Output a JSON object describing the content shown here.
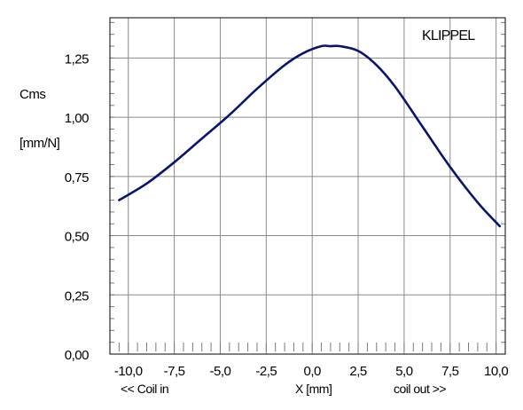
{
  "chart_data": {
    "type": "line",
    "title": "",
    "brand": "KLIPPEL",
    "brand_color": "#1a1ad0",
    "ylabel_lines": [
      "Cms",
      "[mm/N]"
    ],
    "xlabel": "X [mm]",
    "x_left_note": "<< Coil in",
    "x_right_note": "coil out >>",
    "xlim": [
      -11.0,
      10.5
    ],
    "ylim": [
      0.0,
      1.42
    ],
    "x_ticks": [
      -10.0,
      -7.5,
      -5.0,
      -2.5,
      0.0,
      2.5,
      5.0,
      7.5,
      10.0
    ],
    "x_tick_labels": [
      "-10,0",
      "-7,5",
      "-5,0",
      "-2,5",
      "0,0",
      "2,5",
      "5,0",
      "7,5",
      "10,0"
    ],
    "y_ticks": [
      0.0,
      0.25,
      0.5,
      0.75,
      1.0,
      1.25
    ],
    "y_tick_labels": [
      "0,00",
      "0,25",
      "0,50",
      "0,75",
      "1,00",
      "1,25"
    ],
    "grid": true,
    "series": [
      {
        "color": "#0a1470",
        "x": [
          -10.5,
          -9.0,
          -7.5,
          -6.0,
          -4.5,
          -3.0,
          -1.5,
          -0.5,
          0.5,
          1.0,
          1.5,
          2.5,
          3.5,
          4.5,
          6.0,
          7.5,
          9.0,
          10.2
        ],
        "y": [
          0.65,
          0.72,
          0.81,
          0.91,
          1.01,
          1.12,
          1.22,
          1.27,
          1.3,
          1.3,
          1.3,
          1.28,
          1.22,
          1.13,
          0.96,
          0.79,
          0.64,
          0.54
        ]
      }
    ]
  }
}
